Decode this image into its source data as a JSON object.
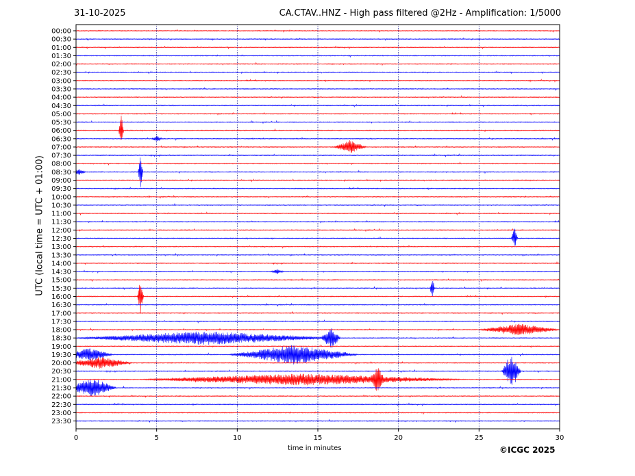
{
  "header": {
    "date": "31-10-2025",
    "title": "CA.CTAV..HNZ - High pass filtered @2Hz - Amplification: 1/5000"
  },
  "footer": {
    "copyright": "©ICGC 2025"
  },
  "colors": {
    "trace_even": "#ff0000",
    "trace_odd": "#0000ff",
    "grid": "#000080"
  },
  "chart_data": {
    "type": "line",
    "title": "CA.CTAV..HNZ - High pass filtered @2Hz - Amplification: 1/5000",
    "xlabel": "time in minutes",
    "ylabel": "UTC (local time = UTC + 01:00)",
    "xlim": [
      0,
      30
    ],
    "x_ticks": [
      0,
      5,
      10,
      15,
      20,
      25,
      30
    ],
    "vertical_grid_at": [
      5,
      10,
      15,
      20,
      25
    ],
    "rows": [
      "00:00",
      "00:30",
      "01:00",
      "01:30",
      "02:00",
      "02:30",
      "03:00",
      "03:30",
      "04:00",
      "04:30",
      "05:00",
      "05:30",
      "06:00",
      "06:30",
      "07:00",
      "07:30",
      "08:00",
      "08:30",
      "09:00",
      "09:30",
      "10:00",
      "10:30",
      "11:00",
      "11:30",
      "12:00",
      "12:30",
      "13:00",
      "13:30",
      "14:00",
      "14:30",
      "15:00",
      "15:30",
      "16:00",
      "16:30",
      "17:00",
      "17:30",
      "18:00",
      "18:30",
      "19:00",
      "19:30",
      "20:00",
      "20:30",
      "21:00",
      "21:30",
      "22:00",
      "22:30",
      "23:00",
      "23:30"
    ],
    "events": [
      {
        "row": "06:00",
        "minute": 2.8,
        "amplitude": 1.0,
        "width": 0.15
      },
      {
        "row": "06:30",
        "minute": 5.0,
        "amplitude": 0.15,
        "width": 0.3
      },
      {
        "row": "07:00",
        "minute": 17.0,
        "amplitude": 0.35,
        "width": 1.0
      },
      {
        "row": "08:30",
        "minute": 4.0,
        "amplitude": 1.0,
        "width": 0.15
      },
      {
        "row": "08:30",
        "minute": 0.2,
        "amplitude": 0.15,
        "width": 0.4
      },
      {
        "row": "12:30",
        "minute": 27.2,
        "amplitude": 0.6,
        "width": 0.2
      },
      {
        "row": "14:30",
        "minute": 12.5,
        "amplitude": 0.12,
        "width": 0.4
      },
      {
        "row": "15:30",
        "minute": 22.1,
        "amplitude": 0.55,
        "width": 0.15
      },
      {
        "row": "16:00",
        "minute": 4.0,
        "amplitude": 1.0,
        "width": 0.2
      },
      {
        "row": "18:00",
        "minute": 27.5,
        "amplitude": 0.3,
        "width": 2.5
      },
      {
        "row": "18:30",
        "minute": 8.0,
        "amplitude": 0.35,
        "width": 8.0
      },
      {
        "row": "18:30",
        "minute": 15.8,
        "amplitude": 0.6,
        "width": 0.6
      },
      {
        "row": "19:30",
        "minute": 13.5,
        "amplitude": 0.5,
        "width": 4.0
      },
      {
        "row": "19:30",
        "minute": 0.8,
        "amplitude": 0.35,
        "width": 1.5
      },
      {
        "row": "20:00",
        "minute": 1.5,
        "amplitude": 0.3,
        "width": 2.0
      },
      {
        "row": "20:30",
        "minute": 27.0,
        "amplitude": 1.0,
        "width": 0.6
      },
      {
        "row": "21:00",
        "minute": 14.0,
        "amplitude": 0.3,
        "width": 10.0
      },
      {
        "row": "21:00",
        "minute": 18.7,
        "amplitude": 0.6,
        "width": 0.4
      },
      {
        "row": "21:30",
        "minute": 1.0,
        "amplitude": 0.55,
        "width": 1.5
      }
    ]
  }
}
